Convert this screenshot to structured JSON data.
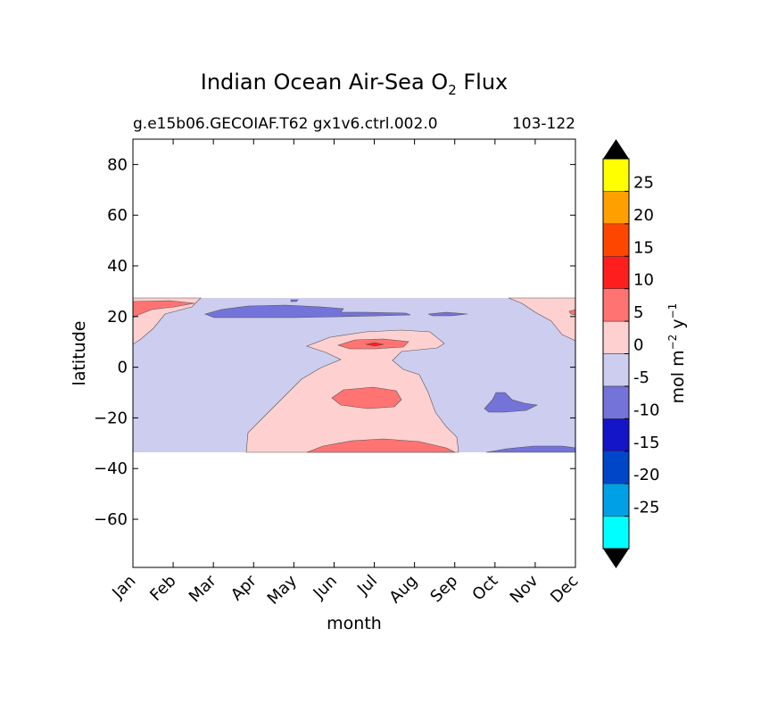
{
  "chart_data": {
    "type": "heatmap",
    "title": "Indian Ocean Air-Sea O",
    "title_subscript": "2",
    "title_suffix": "Flux",
    "subtitle_left": "g.e15b06.GECOIAF.T62 gx1v6.ctrl.002.0",
    "subtitle_right": "103-122",
    "xlabel": "month",
    "ylabel": "latitude",
    "x_ticks": [
      "Jan",
      "Feb",
      "Mar",
      "Apr",
      "May",
      "Jun",
      "Jul",
      "Aug",
      "Sep",
      "Oct",
      "Nov",
      "Dec"
    ],
    "y_ticks": [
      "80",
      "60",
      "40",
      "20",
      "0",
      "−20",
      "−40",
      "−60"
    ],
    "y_tick_values": [
      80,
      60,
      40,
      20,
      0,
      -20,
      -40,
      -60
    ],
    "xlim": [
      0,
      11
    ],
    "ylim": [
      -79,
      90
    ],
    "data_lat_range": [
      -34,
      27
    ],
    "colorbar": {
      "label": "mol m",
      "label_exp1": "−2",
      "label_mid": "y",
      "label_exp2": "−1",
      "levels": [
        -30,
        -25,
        -20,
        -15,
        -10,
        -5,
        0,
        5,
        10,
        15,
        20,
        25,
        30
      ],
      "tick_labels": [
        "-25",
        "-20",
        "-15",
        "-10",
        "-5",
        "0",
        "5",
        "10",
        "15",
        "20",
        "25"
      ],
      "colors": [
        "#00ffff",
        "#00a0e6",
        "#0046c8",
        "#1414c8",
        "#7373d9",
        "#cccdef",
        "#ffd0d0",
        "#ff7373",
        "#ff1e1e",
        "#ff4600",
        "#ffa000",
        "#ffff00"
      ],
      "extend": "both"
    }
  }
}
